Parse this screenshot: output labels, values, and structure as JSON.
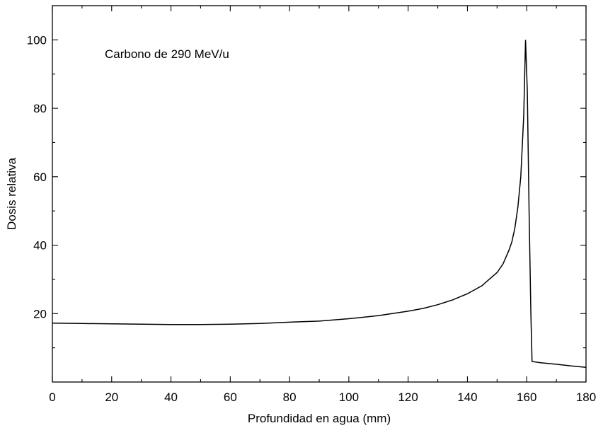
{
  "chart_data": {
    "type": "line",
    "xlabel": "Profundidad en agua (mm)",
    "ylabel": "Dosis relativa",
    "xlim": [
      0,
      180
    ],
    "ylim": [
      0,
      110
    ],
    "x_ticks": [
      0,
      20,
      40,
      60,
      80,
      100,
      120,
      140,
      160,
      180
    ],
    "y_ticks": [
      20,
      40,
      60,
      80,
      100
    ],
    "x_minor_step": 10,
    "y_minor_step": 10,
    "annotation": "Carbono de 290 MeV/u",
    "grid": false,
    "series": [
      {
        "points": [
          [
            0,
            17.2
          ],
          [
            10,
            17.1
          ],
          [
            20,
            17.0
          ],
          [
            30,
            16.9
          ],
          [
            40,
            16.8
          ],
          [
            50,
            16.8
          ],
          [
            60,
            16.9
          ],
          [
            70,
            17.1
          ],
          [
            80,
            17.5
          ],
          [
            90,
            17.8
          ],
          [
            100,
            18.5
          ],
          [
            110,
            19.4
          ],
          [
            120,
            20.7
          ],
          [
            125,
            21.5
          ],
          [
            130,
            22.6
          ],
          [
            135,
            24.0
          ],
          [
            140,
            25.8
          ],
          [
            145,
            28.2
          ],
          [
            146,
            29.0
          ],
          [
            148,
            30.5
          ],
          [
            150,
            32.0
          ],
          [
            152,
            34.5
          ],
          [
            154,
            38.5
          ],
          [
            155,
            41.0
          ],
          [
            156,
            45.0
          ],
          [
            157,
            51.0
          ],
          [
            158,
            60.0
          ],
          [
            159,
            78.0
          ],
          [
            159.6,
            100.0
          ],
          [
            160.2,
            85.0
          ],
          [
            160.8,
            50.0
          ],
          [
            161.4,
            20.0
          ],
          [
            161.8,
            6.0
          ],
          [
            165,
            5.6
          ],
          [
            170,
            5.2
          ],
          [
            175,
            4.7
          ],
          [
            180,
            4.3
          ]
        ]
      }
    ]
  }
}
